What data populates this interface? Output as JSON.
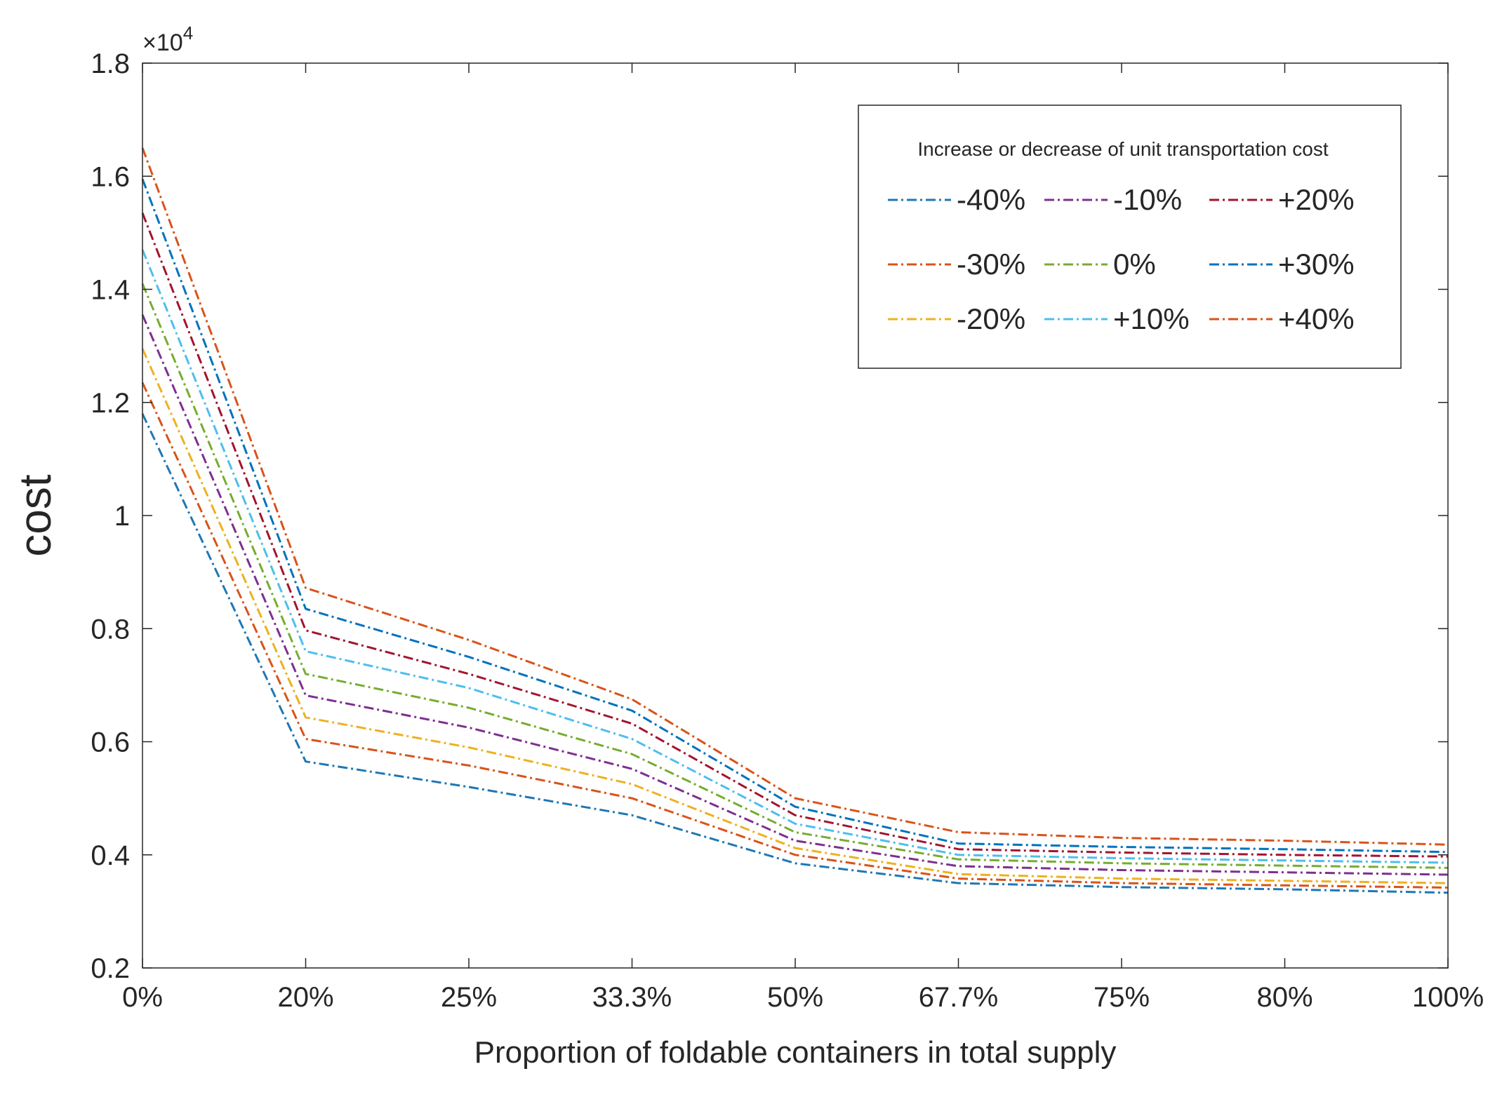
{
  "chart_data": {
    "type": "line",
    "title": "",
    "xlabel": "Proportion of foldable containers in total supply",
    "ylabel": "cost",
    "y_exponent": "×10",
    "y_exponent_power": "4",
    "categories": [
      "0%",
      "20%",
      "25%",
      "33.3%",
      "50%",
      "67.7%",
      "75%",
      "80%",
      "100%"
    ],
    "ylim": [
      0.2,
      1.8
    ],
    "yticks": [
      0.2,
      0.4,
      0.6,
      0.8,
      1,
      1.2,
      1.4,
      1.6,
      1.8
    ],
    "ytick_labels": [
      "0.2",
      "0.4",
      "0.6",
      "0.8",
      "1",
      "1.2",
      "1.4",
      "1.6",
      "1.8"
    ],
    "legend_title": "Increase or decrease of unit transportation cost",
    "legend_position": "top-right",
    "series": [
      {
        "name": "-40%",
        "color": "#1f77b4",
        "values": [
          1.18,
          0.565,
          0.52,
          0.47,
          0.385,
          0.35,
          0.343,
          0.339,
          0.333
        ]
      },
      {
        "name": "-30%",
        "color": "#d95319",
        "values": [
          1.235,
          0.605,
          0.558,
          0.5,
          0.4,
          0.358,
          0.35,
          0.346,
          0.342
        ]
      },
      {
        "name": "-20%",
        "color": "#edb120",
        "values": [
          1.295,
          0.643,
          0.59,
          0.525,
          0.412,
          0.366,
          0.358,
          0.354,
          0.35
        ]
      },
      {
        "name": "-10%",
        "color": "#7e2f8e",
        "values": [
          1.355,
          0.682,
          0.625,
          0.552,
          0.425,
          0.38,
          0.373,
          0.369,
          0.365
        ]
      },
      {
        "name": "0%",
        "color": "#77ac30",
        "values": [
          1.41,
          0.72,
          0.66,
          0.578,
          0.44,
          0.392,
          0.385,
          0.381,
          0.377
        ]
      },
      {
        "name": "+10%",
        "color": "#4dbeee",
        "values": [
          1.47,
          0.76,
          0.695,
          0.605,
          0.455,
          0.4,
          0.394,
          0.39,
          0.386
        ]
      },
      {
        "name": "+20%",
        "color": "#a2142f",
        "values": [
          1.535,
          0.797,
          0.72,
          0.632,
          0.47,
          0.41,
          0.404,
          0.4,
          0.397
        ]
      },
      {
        "name": "+30%",
        "color": "#0072bd",
        "values": [
          1.595,
          0.835,
          0.75,
          0.655,
          0.485,
          0.42,
          0.414,
          0.41,
          0.405
        ]
      },
      {
        "name": "+40%",
        "color": "#d95319",
        "values": [
          1.65,
          0.872,
          0.78,
          0.675,
          0.5,
          0.44,
          0.43,
          0.425,
          0.418
        ]
      }
    ],
    "legend_order": [
      "-40%",
      "-10%",
      "+20%",
      "-30%",
      "0%",
      "+30%",
      "-20%",
      "+10%",
      "+40%"
    ]
  }
}
